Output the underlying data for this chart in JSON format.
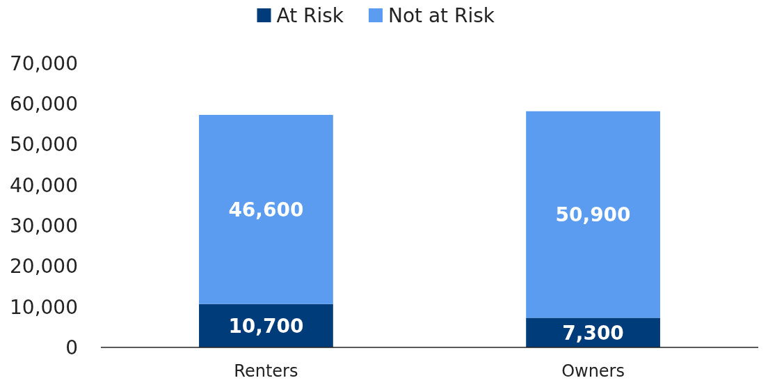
{
  "chart_data": {
    "type": "bar",
    "stacked": true,
    "categories": [
      "Renters",
      "Owners"
    ],
    "series": [
      {
        "name": "At Risk",
        "color": "#003b7a",
        "values": [
          10700,
          7300
        ],
        "value_labels": [
          "10,700",
          "7,300"
        ]
      },
      {
        "name": "Not at Risk",
        "color": "#5b9cf0",
        "values": [
          46600,
          50900
        ],
        "value_labels": [
          "46,600",
          "50,900"
        ]
      }
    ],
    "ylim": [
      0,
      70000
    ],
    "yticks": [
      {
        "value": 0,
        "label": "0"
      },
      {
        "value": 10000,
        "label": "10,000"
      },
      {
        "value": 20000,
        "label": "20,000"
      },
      {
        "value": 30000,
        "label": "30,000"
      },
      {
        "value": 40000,
        "label": "40,000"
      },
      {
        "value": 50000,
        "label": "50,000"
      },
      {
        "value": 60000,
        "label": "60,000"
      },
      {
        "value": 70000,
        "label": "70,000"
      }
    ],
    "legend": "top",
    "grid": false
  }
}
